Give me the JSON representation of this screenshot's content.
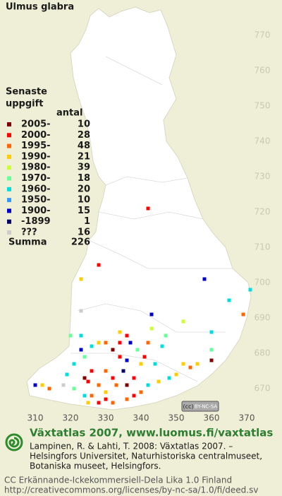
{
  "title": "Ulmus glabra",
  "legend": {
    "heading": [
      "Senaste",
      "uppgift"
    ],
    "count_header": "antal",
    "rows": [
      {
        "label": "2005-",
        "color": "#800000",
        "count": 10
      },
      {
        "label": "2000-",
        "color": "#ff0000",
        "count": 28
      },
      {
        "label": "1995-",
        "color": "#ff6600",
        "count": 48
      },
      {
        "label": "1990-",
        "color": "#ffcc00",
        "count": 21
      },
      {
        "label": "1980-",
        "color": "#ccff33",
        "count": 39
      },
      {
        "label": "1970-",
        "color": "#66ff99",
        "count": 18
      },
      {
        "label": "1960-",
        "color": "#00dddd",
        "count": 20
      },
      {
        "label": "1950-",
        "color": "#3399ff",
        "count": 10
      },
      {
        "label": "1900-",
        "color": "#0000cc",
        "count": 15
      },
      {
        "label": "-1899",
        "color": "#000066",
        "count": 1
      },
      {
        "label": "???",
        "color": "#cccccc",
        "count": 16
      }
    ],
    "total": {
      "label": "Summa",
      "count": 226
    }
  },
  "map": {
    "xlim": [
      300,
      380
    ],
    "ylim": [
      661,
      780
    ],
    "xticks": [
      310,
      320,
      330,
      340,
      350,
      360,
      370
    ],
    "yticks": [
      670,
      680,
      690,
      700,
      710,
      720,
      730,
      740,
      750,
      760,
      770
    ],
    "squares": [
      {
        "x": 342,
        "y": 721,
        "period": 1
      },
      {
        "x": 328,
        "y": 705,
        "period": 1
      },
      {
        "x": 323,
        "y": 701,
        "period": 3
      },
      {
        "x": 323,
        "y": 692,
        "period": 10
      },
      {
        "x": 358,
        "y": 701,
        "period": 8
      },
      {
        "x": 371,
        "y": 698,
        "period": 6
      },
      {
        "x": 365,
        "y": 695,
        "period": 6
      },
      {
        "x": 369,
        "y": 691,
        "period": 2
      },
      {
        "x": 343,
        "y": 691,
        "period": 8
      },
      {
        "x": 343,
        "y": 687,
        "period": 4
      },
      {
        "x": 352,
        "y": 689,
        "period": 4
      },
      {
        "x": 360,
        "y": 686,
        "period": 6
      },
      {
        "x": 360,
        "y": 681,
        "period": 5
      },
      {
        "x": 360,
        "y": 678,
        "period": 0
      },
      {
        "x": 323,
        "y": 685,
        "period": 6
      },
      {
        "x": 320,
        "y": 685,
        "period": 5
      },
      {
        "x": 323,
        "y": 681,
        "period": 8
      },
      {
        "x": 328,
        "y": 683,
        "period": 3
      },
      {
        "x": 330,
        "y": 683,
        "period": 2
      },
      {
        "x": 334,
        "y": 683,
        "period": 1
      },
      {
        "x": 337,
        "y": 683,
        "period": 8
      },
      {
        "x": 336,
        "y": 685,
        "period": 1
      },
      {
        "x": 339,
        "y": 681,
        "period": 5
      },
      {
        "x": 342,
        "y": 683,
        "period": 2
      },
      {
        "x": 346,
        "y": 682,
        "period": 6
      },
      {
        "x": 324,
        "y": 679,
        "period": 5
      },
      {
        "x": 334,
        "y": 679,
        "period": 1
      },
      {
        "x": 340,
        "y": 677,
        "period": 3
      },
      {
        "x": 344,
        "y": 677,
        "period": 6
      },
      {
        "x": 352,
        "y": 677,
        "period": 3
      },
      {
        "x": 321,
        "y": 677,
        "period": 6
      },
      {
        "x": 326,
        "y": 675,
        "period": 1
      },
      {
        "x": 330,
        "y": 675,
        "period": 2
      },
      {
        "x": 335,
        "y": 675,
        "period": 9
      },
      {
        "x": 336,
        "y": 678,
        "period": 8
      },
      {
        "x": 332,
        "y": 673,
        "period": 1
      },
      {
        "x": 324,
        "y": 673,
        "period": 0
      },
      {
        "x": 325,
        "y": 672,
        "period": 1
      },
      {
        "x": 328,
        "y": 671,
        "period": 2
      },
      {
        "x": 333,
        "y": 671,
        "period": 2
      },
      {
        "x": 336,
        "y": 671,
        "period": 0
      },
      {
        "x": 338,
        "y": 673,
        "period": 1
      },
      {
        "x": 340,
        "y": 669,
        "period": 2
      },
      {
        "x": 342,
        "y": 671,
        "period": 6
      },
      {
        "x": 345,
        "y": 672,
        "period": 3
      },
      {
        "x": 348,
        "y": 673,
        "period": 6
      },
      {
        "x": 350,
        "y": 674,
        "period": 3
      },
      {
        "x": 354,
        "y": 676,
        "period": 2
      },
      {
        "x": 356,
        "y": 677,
        "period": 3
      },
      {
        "x": 310,
        "y": 671,
        "period": 8
      },
      {
        "x": 312,
        "y": 671,
        "period": 3
      },
      {
        "x": 314,
        "y": 670,
        "period": 2
      },
      {
        "x": 318,
        "y": 671,
        "period": 10
      },
      {
        "x": 321,
        "y": 670,
        "period": 5
      },
      {
        "x": 324,
        "y": 668,
        "period": 6
      },
      {
        "x": 326,
        "y": 668,
        "period": 2
      },
      {
        "x": 330,
        "y": 667,
        "period": 1
      },
      {
        "x": 332,
        "y": 666,
        "period": 2
      },
      {
        "x": 336,
        "y": 667,
        "period": 2
      },
      {
        "x": 338,
        "y": 668,
        "period": 1
      },
      {
        "x": 325,
        "y": 666,
        "period": 3
      },
      {
        "x": 328,
        "y": 666,
        "period": 1
      },
      {
        "x": 330,
        "y": 669,
        "period": 3
      },
      {
        "x": 319,
        "y": 674,
        "period": 6
      },
      {
        "x": 347,
        "y": 685,
        "period": 5
      },
      {
        "x": 334,
        "y": 686,
        "period": 3
      },
      {
        "x": 326,
        "y": 682,
        "period": 6
      },
      {
        "x": 332,
        "y": 681,
        "period": 0
      },
      {
        "x": 341,
        "y": 679,
        "period": 1
      }
    ]
  },
  "badge": {
    "symbol": "(cc)",
    "text": "BY-NC-SA"
  },
  "footer": {
    "heading": "Växtatlas 2007, www.luomus.fi/vaxtatlas",
    "citation": [
      "Lampinen, R. & Lahti, T. 2008: Växtatlas 2007. –",
      "Helsingfors Universitet, Naturhistoriska centralmuseet,",
      "Botaniska museet, Helsingfors."
    ],
    "license": [
      "CC Erkännande-Ickekommersiell-Dela Lika 1.0 Finland",
      "http://creativecommons.org/licenses/by-nc-sa/1.0/fi/deed.sv"
    ]
  }
}
